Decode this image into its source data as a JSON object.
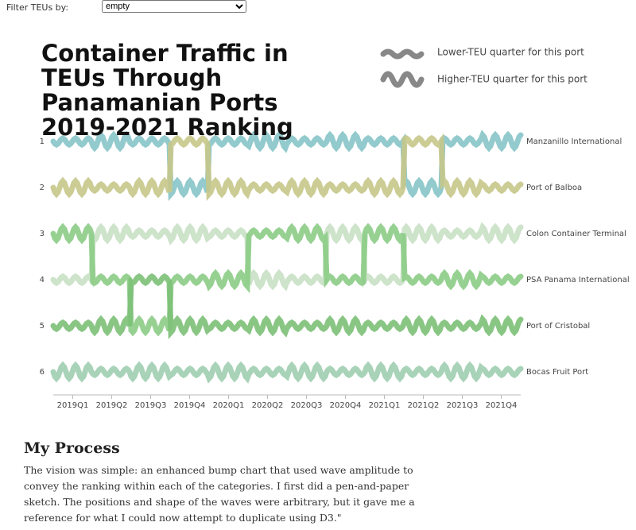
{
  "filter": {
    "label": "Filter TEUs by:",
    "selected": "empty"
  },
  "legend": {
    "lower": "Lower-TEU quarter for this port",
    "higher": "Higher-TEU quarter for this port"
  },
  "chart_data": {
    "type": "bump",
    "title": "Container Traffic in TEUs Through Panamanian Ports 2019-2021 Ranking",
    "categories": [
      "2019Q1",
      "2019Q2",
      "2019Q3",
      "2019Q4",
      "2020Q1",
      "2020Q2",
      "2020Q3",
      "2020Q4",
      "2021Q1",
      "2021Q2",
      "2021Q3",
      "2021Q4"
    ],
    "ylim": [
      1,
      6
    ],
    "yticks": [
      1,
      2,
      3,
      4,
      5,
      6
    ],
    "series": [
      {
        "name": "Manzanillo International",
        "color": "#86c4c8",
        "values": [
          1,
          1,
          1,
          2,
          1,
          1,
          1,
          1,
          1,
          2,
          1,
          1
        ]
      },
      {
        "name": "Port of Balboa",
        "color": "#c6c68a",
        "values": [
          2,
          2,
          2,
          1,
          2,
          2,
          2,
          2,
          2,
          1,
          2,
          2
        ]
      },
      {
        "name": "Colon Container Terminal",
        "color": "#c8e0c4",
        "values": [
          4,
          3,
          3,
          3,
          3,
          4,
          4,
          3,
          4,
          3,
          3,
          3
        ]
      },
      {
        "name": "PSA Panama International",
        "color": "#8ccc86",
        "values": [
          3,
          4,
          5,
          4,
          4,
          3,
          3,
          4,
          3,
          4,
          4,
          4
        ]
      },
      {
        "name": "Port of Cristobal",
        "color": "#7cc077",
        "values": [
          5,
          5,
          4,
          5,
          5,
          5,
          5,
          5,
          5,
          5,
          5,
          5
        ]
      },
      {
        "name": "Bocas Fruit Port",
        "color": "#9fceb0",
        "values": [
          6,
          6,
          6,
          6,
          6,
          6,
          6,
          6,
          6,
          6,
          6,
          6
        ]
      }
    ]
  },
  "process": {
    "heading": "My Process",
    "text": "The vision was simple: an enhanced bump chart that used wave amplitude to convey the ranking within each of the categories. I first did a pen-and-paper sketch. The positions and shape of the waves were arbitrary, but it gave me a reference for what I could now attempt to duplicate using D3.\""
  }
}
